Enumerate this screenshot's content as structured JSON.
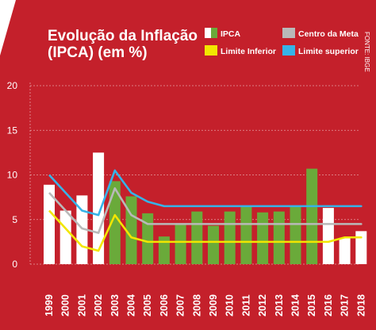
{
  "chart_data": {
    "type": "bar",
    "title_line1": "Evolução da Inflação",
    "title_line2": "(IPCA) (em %)",
    "source": "FONTE: IBGE",
    "xlabel": "",
    "ylabel": "",
    "ylim": [
      0,
      20
    ],
    "yticks": [
      "0",
      "5",
      "10",
      "15",
      "20"
    ],
    "grid": true,
    "legend_position": "top-right",
    "categories": [
      "1999",
      "2000",
      "2001",
      "2002",
      "2003",
      "2004",
      "2005",
      "2006",
      "2007",
      "2008",
      "2009",
      "2010",
      "2011",
      "2012",
      "2013",
      "2014",
      "2015",
      "2016",
      "2017",
      "2018"
    ],
    "series": [
      {
        "name": "IPCA",
        "kind": "bar",
        "values": [
          8.9,
          6.0,
          7.7,
          12.5,
          9.3,
          7.6,
          5.7,
          3.1,
          4.5,
          5.9,
          4.3,
          5.9,
          6.5,
          5.8,
          5.9,
          6.4,
          10.7,
          6.3,
          2.9,
          3.7
        ],
        "bar_colors": [
          "#ffffff",
          "#ffffff",
          "#ffffff",
          "#ffffff",
          "#6aaa3a",
          "#6aaa3a",
          "#6aaa3a",
          "#6aaa3a",
          "#6aaa3a",
          "#6aaa3a",
          "#6aaa3a",
          "#6aaa3a",
          "#6aaa3a",
          "#6aaa3a",
          "#6aaa3a",
          "#6aaa3a",
          "#6aaa3a",
          "#ffffff",
          "#ffffff",
          "#ffffff"
        ]
      },
      {
        "name": "Centro da Meta",
        "kind": "line",
        "color": "#b9b9b9",
        "values": [
          8.0,
          6.0,
          4.0,
          3.5,
          8.5,
          5.5,
          4.5,
          4.5,
          4.5,
          4.5,
          4.5,
          4.5,
          4.5,
          4.5,
          4.5,
          4.5,
          4.5,
          4.5,
          4.5,
          4.5
        ]
      },
      {
        "name": "Limite Inferior",
        "kind": "line",
        "color": "#f2e600",
        "values": [
          6.0,
          4.0,
          2.0,
          1.5,
          5.5,
          3.0,
          2.5,
          2.5,
          2.5,
          2.5,
          2.5,
          2.5,
          2.5,
          2.5,
          2.5,
          2.5,
          2.5,
          2.5,
          3.0,
          3.0
        ]
      },
      {
        "name": "Limite superior",
        "kind": "line",
        "color": "#36b3e8",
        "values": [
          10.0,
          8.0,
          6.0,
          5.5,
          10.5,
          8.0,
          7.0,
          6.5,
          6.5,
          6.5,
          6.5,
          6.5,
          6.5,
          6.5,
          6.5,
          6.5,
          6.5,
          6.5,
          6.5,
          6.5
        ]
      }
    ]
  },
  "colors": {
    "background": "#c4202b",
    "text": "#ffffff"
  }
}
